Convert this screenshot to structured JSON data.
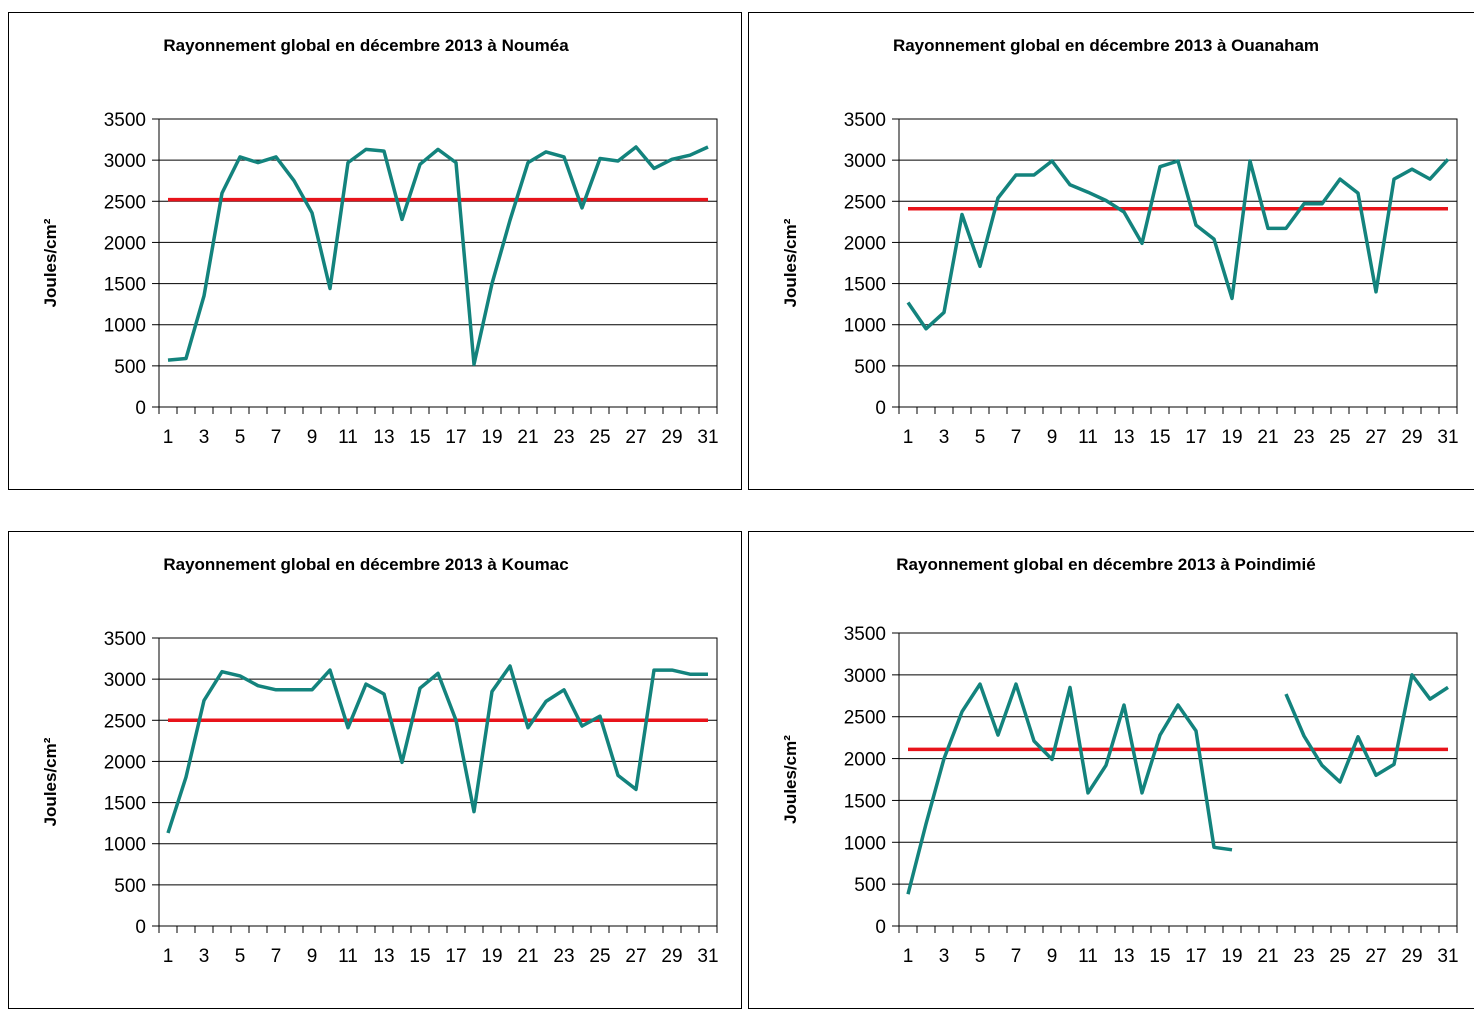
{
  "colors": {
    "series": "#13837D",
    "mean": "#E8131A",
    "grid": "#000000",
    "border": "#000000"
  },
  "chart_data": [
    {
      "type": "line",
      "title": "Rayonnement global en décembre 2013 à Nouméa",
      "ylabel": "Joules/cm²",
      "xlabel": "",
      "ylim": [
        0,
        3500
      ],
      "yticks": [
        "0",
        "500",
        "1000",
        "1500",
        "2000",
        "2500",
        "3000",
        "3500"
      ],
      "xticks": [
        "1",
        "3",
        "5",
        "7",
        "9",
        "11",
        "13",
        "15",
        "17",
        "19",
        "21",
        "23",
        "25",
        "27",
        "29",
        "31"
      ],
      "grid": "horizontal",
      "x": [
        1,
        2,
        3,
        4,
        5,
        6,
        7,
        8,
        9,
        10,
        11,
        12,
        13,
        14,
        15,
        16,
        17,
        18,
        19,
        20,
        21,
        22,
        23,
        24,
        25,
        26,
        27,
        28,
        29,
        30,
        31
      ],
      "series": [
        {
          "values": [
            570,
            590,
            1350,
            2600,
            3040,
            2970,
            3040,
            2750,
            2360,
            1440,
            2970,
            3130,
            3110,
            2280,
            2950,
            3130,
            2970,
            520,
            1500,
            2270,
            2970,
            3100,
            3040,
            2420,
            3020,
            2990,
            3160,
            2900,
            3010,
            3060,
            3160
          ]
        },
        {
          "values": [
            2520,
            2520,
            2520,
            2520,
            2520,
            2520,
            2520,
            2520,
            2520,
            2520,
            2520,
            2520,
            2520,
            2520,
            2520,
            2520,
            2520,
            2520,
            2520,
            2520,
            2520,
            2520,
            2520,
            2520,
            2520,
            2520,
            2520,
            2520,
            2520,
            2520,
            2520
          ]
        }
      ]
    },
    {
      "type": "line",
      "title": "Rayonnement global en décembre 2013 à Ouanaham",
      "ylabel": "Joules/cm²",
      "xlabel": "",
      "ylim": [
        0,
        3500
      ],
      "yticks": [
        "0",
        "500",
        "1000",
        "1500",
        "2000",
        "2500",
        "3000",
        "3500"
      ],
      "xticks": [
        "1",
        "3",
        "5",
        "7",
        "9",
        "11",
        "13",
        "15",
        "17",
        "19",
        "21",
        "23",
        "25",
        "27",
        "29",
        "31"
      ],
      "grid": "horizontal",
      "x": [
        1,
        2,
        3,
        4,
        5,
        6,
        7,
        8,
        9,
        10,
        11,
        12,
        13,
        14,
        15,
        16,
        17,
        18,
        19,
        20,
        21,
        22,
        23,
        24,
        25,
        26,
        27,
        28,
        29,
        30,
        31
      ],
      "series": [
        {
          "values": [
            1270,
            950,
            1150,
            2340,
            1710,
            2540,
            2820,
            2820,
            2990,
            2700,
            2610,
            2510,
            2370,
            1990,
            2920,
            2990,
            2210,
            2040,
            1320,
            2990,
            2170,
            2170,
            2470,
            2470,
            2770,
            2600,
            1400,
            2770,
            2890,
            2770,
            3010
          ]
        },
        {
          "values": [
            2410,
            2410,
            2410,
            2410,
            2410,
            2410,
            2410,
            2410,
            2410,
            2410,
            2410,
            2410,
            2410,
            2410,
            2410,
            2410,
            2410,
            2410,
            2410,
            2410,
            2410,
            2410,
            2410,
            2410,
            2410,
            2410,
            2410,
            2410,
            2410,
            2410,
            2410
          ]
        }
      ]
    },
    {
      "type": "line",
      "title": "Rayonnement global en décembre 2013 à Koumac",
      "ylabel": "Joules/cm²",
      "xlabel": "",
      "ylim": [
        0,
        3500
      ],
      "yticks": [
        "0",
        "500",
        "1000",
        "1500",
        "2000",
        "2500",
        "3000",
        "3500"
      ],
      "xticks": [
        "1",
        "3",
        "5",
        "7",
        "9",
        "11",
        "13",
        "15",
        "17",
        "19",
        "21",
        "23",
        "25",
        "27",
        "29",
        "31"
      ],
      "grid": "horizontal",
      "x": [
        1,
        2,
        3,
        4,
        5,
        6,
        7,
        8,
        9,
        10,
        11,
        12,
        13,
        14,
        15,
        16,
        17,
        18,
        19,
        20,
        21,
        22,
        23,
        24,
        25,
        26,
        27,
        28,
        29,
        30,
        31
      ],
      "series": [
        {
          "values": [
            1130,
            1810,
            2740,
            3090,
            3040,
            2920,
            2870,
            2870,
            2870,
            3110,
            2410,
            2940,
            2820,
            1990,
            2890,
            3070,
            2500,
            1390,
            2850,
            3160,
            2410,
            2730,
            2870,
            2430,
            2550,
            1830,
            1660,
            3110,
            3110,
            3060,
            3060
          ]
        },
        {
          "values": [
            2500,
            2500,
            2500,
            2500,
            2500,
            2500,
            2500,
            2500,
            2500,
            2500,
            2500,
            2500,
            2500,
            2500,
            2500,
            2500,
            2500,
            2500,
            2500,
            2500,
            2500,
            2500,
            2500,
            2500,
            2500,
            2500,
            2500,
            2500,
            2500,
            2500,
            2500
          ]
        }
      ]
    },
    {
      "type": "line",
      "title": "Rayonnement global en décembre 2013 à Poindimié",
      "ylabel": "Joules/cm²",
      "xlabel": "",
      "ylim": [
        0,
        3500
      ],
      "yticks": [
        "0",
        "500",
        "1000",
        "1500",
        "2000",
        "2500",
        "3000",
        "3500"
      ],
      "xticks": [
        "1",
        "3",
        "5",
        "7",
        "9",
        "11",
        "13",
        "15",
        "17",
        "19",
        "21",
        "23",
        "25",
        "27",
        "29",
        "31"
      ],
      "grid": "horizontal",
      "x": [
        1,
        2,
        3,
        4,
        5,
        6,
        7,
        8,
        9,
        10,
        11,
        12,
        13,
        14,
        15,
        16,
        17,
        18,
        19,
        20,
        21,
        22,
        23,
        24,
        25,
        26,
        27,
        28,
        29,
        30,
        31
      ],
      "series": [
        {
          "values": [
            380,
            1220,
            2000,
            2560,
            2890,
            2280,
            2890,
            2210,
            1990,
            2850,
            1590,
            1920,
            2640,
            1590,
            2280,
            2640,
            2330,
            940,
            910,
            null,
            null,
            2770,
            2270,
            1920,
            1720,
            2260,
            1800,
            1930,
            3000,
            2710,
            2850
          ]
        },
        {
          "values": [
            2110,
            2110,
            2110,
            2110,
            2110,
            2110,
            2110,
            2110,
            2110,
            2110,
            2110,
            2110,
            2110,
            2110,
            2110,
            2110,
            2110,
            2110,
            2110,
            2110,
            2110,
            2110,
            2110,
            2110,
            2110,
            2110,
            2110,
            2110,
            2110,
            2110,
            2110
          ]
        }
      ]
    }
  ]
}
